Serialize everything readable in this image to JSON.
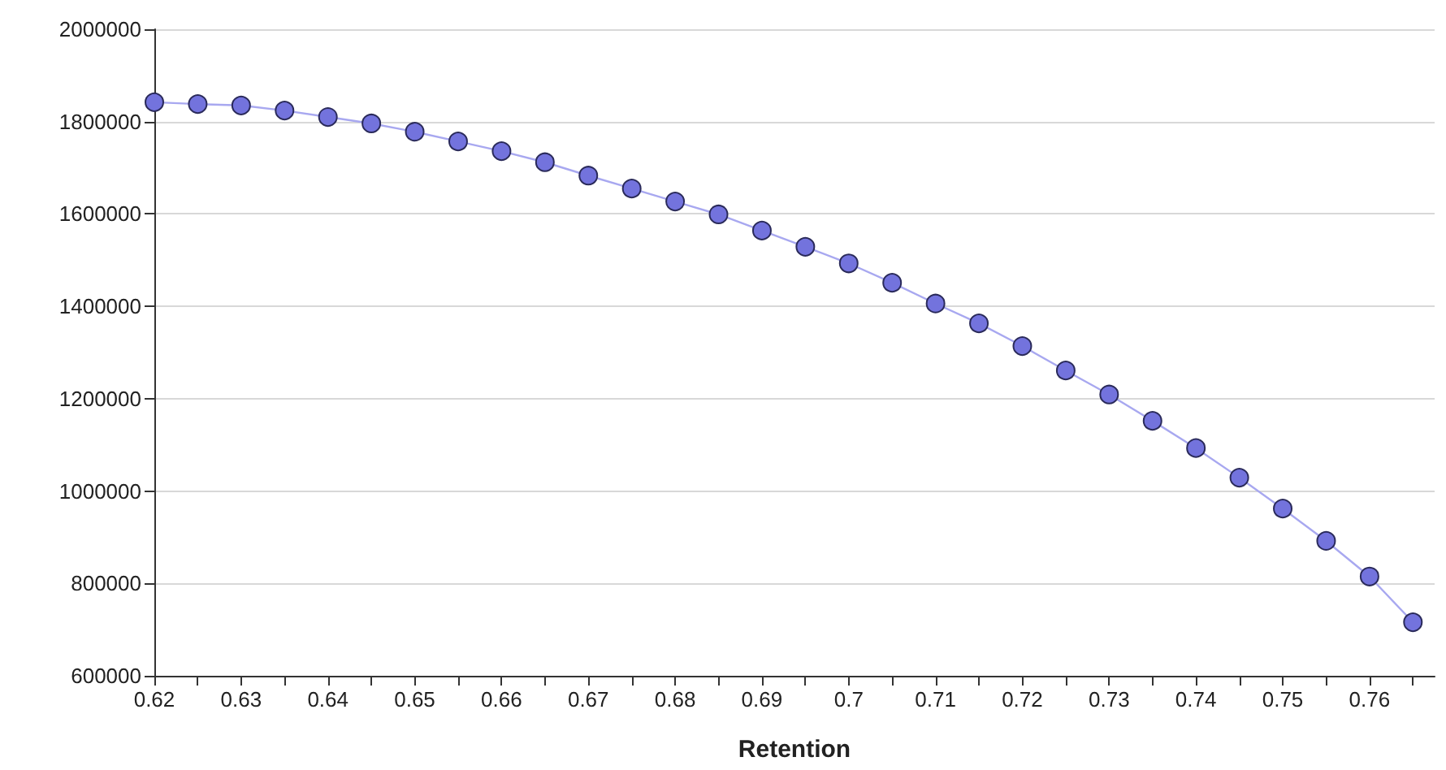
{
  "chart_data": {
    "type": "line",
    "xlabel": "Retention",
    "x": [
      0.62,
      0.625,
      0.63,
      0.635,
      0.64,
      0.645,
      0.65,
      0.655,
      0.66,
      0.665,
      0.67,
      0.675,
      0.68,
      0.685,
      0.69,
      0.695,
      0.7,
      0.705,
      0.71,
      0.715,
      0.72,
      0.725,
      0.73,
      0.735,
      0.74,
      0.745,
      0.75,
      0.755,
      0.76,
      0.765
    ],
    "series": [
      {
        "color": "#7373dd",
        "values": [
          1842000,
          1838000,
          1835000,
          1824000,
          1810000,
          1796000,
          1778000,
          1757000,
          1736000,
          1712000,
          1683000,
          1655000,
          1627000,
          1599000,
          1564000,
          1529000,
          1493000,
          1451000,
          1406000,
          1363000,
          1314000,
          1261000,
          1209000,
          1152000,
          1093000,
          1029000,
          962000,
          892000,
          815000,
          716000
        ]
      }
    ],
    "xlim": [
      0.62,
      0.7675
    ],
    "xticks": [
      0.62,
      {
        "value": 0.625,
        "label": null
      },
      0.63,
      {
        "value": 0.635,
        "label": null
      },
      0.64,
      {
        "value": 0.645,
        "label": null
      },
      0.65,
      {
        "value": 0.655,
        "label": null
      },
      0.66,
      {
        "value": 0.665,
        "label": null
      },
      0.67,
      {
        "value": 0.675,
        "label": null
      },
      0.68,
      {
        "value": 0.685,
        "label": null
      },
      0.69,
      {
        "value": 0.695,
        "label": null
      },
      0.7,
      {
        "value": 0.705,
        "label": null
      },
      0.71,
      {
        "value": 0.715,
        "label": null
      },
      0.72,
      {
        "value": 0.725,
        "label": null
      },
      0.73,
      {
        "value": 0.735,
        "label": null
      },
      0.74,
      {
        "value": 0.745,
        "label": null
      },
      0.75,
      {
        "value": 0.755,
        "label": null
      },
      0.76,
      {
        "value": 0.765,
        "label": null
      }
    ],
    "ylim": [
      600000,
      2000000
    ],
    "yticks": [
      600000,
      800000,
      1000000,
      1200000,
      1400000,
      1600000,
      1800000,
      2000000
    ],
    "grid": "y",
    "marker": "circle",
    "line_style": "solid"
  }
}
